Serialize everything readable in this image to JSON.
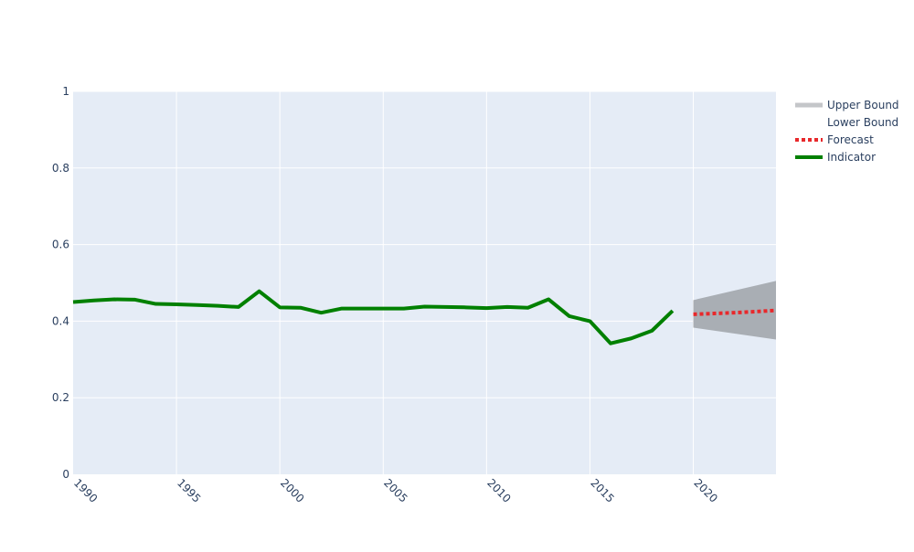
{
  "chart_data": {
    "type": "line",
    "title": "",
    "xlabel": "",
    "ylabel": "",
    "xlim": [
      1990,
      2024
    ],
    "ylim": [
      0,
      1
    ],
    "x_ticks": [
      1990,
      1995,
      2000,
      2005,
      2010,
      2015,
      2020
    ],
    "y_ticks": [
      0,
      0.2,
      0.4,
      0.6,
      0.8,
      1
    ],
    "y_tick_labels": [
      "0",
      "0.2",
      "0.4",
      "0.6",
      "0.8",
      "1"
    ],
    "grid": true,
    "legend_position": "top-right",
    "colors": {
      "plot_bg": "#e5ecf6",
      "indicator": "#008000",
      "forecast": "#e8282b",
      "band": "#a9aeb4"
    },
    "series": [
      {
        "name": "Upper Bound",
        "style": "band-edge",
        "x": [
          2020,
          2024
        ],
        "y": [
          0.455,
          0.505
        ]
      },
      {
        "name": "Lower Bound",
        "style": "band-edge",
        "x": [
          2020,
          2024
        ],
        "y": [
          0.383,
          0.352
        ]
      },
      {
        "name": "Forecast",
        "style": "dotted",
        "x": [
          2020,
          2021,
          2022,
          2023,
          2024
        ],
        "y": [
          0.418,
          0.42,
          0.422,
          0.425,
          0.428
        ]
      },
      {
        "name": "Indicator",
        "style": "solid",
        "x": [
          1990,
          1991,
          1992,
          1993,
          1994,
          1995,
          1996,
          1997,
          1998,
          1999,
          2000,
          2001,
          2002,
          2003,
          2004,
          2005,
          2006,
          2007,
          2008,
          2009,
          2010,
          2011,
          2012,
          2013,
          2014,
          2015,
          2016,
          2017,
          2018,
          2019
        ],
        "y": [
          0.45,
          0.454,
          0.457,
          0.456,
          0.445,
          0.444,
          0.442,
          0.44,
          0.437,
          0.478,
          0.436,
          0.435,
          0.422,
          0.433,
          0.433,
          0.433,
          0.433,
          0.438,
          0.437,
          0.436,
          0.434,
          0.437,
          0.435,
          0.457,
          0.413,
          0.4,
          0.342,
          0.355,
          0.375,
          0.427
        ]
      }
    ],
    "legend": [
      {
        "label": "Upper Bound",
        "symbol": "band"
      },
      {
        "label": "Lower Bound",
        "symbol": "none"
      },
      {
        "label": "Forecast",
        "symbol": "dotted"
      },
      {
        "label": "Indicator",
        "symbol": "solid"
      }
    ]
  }
}
